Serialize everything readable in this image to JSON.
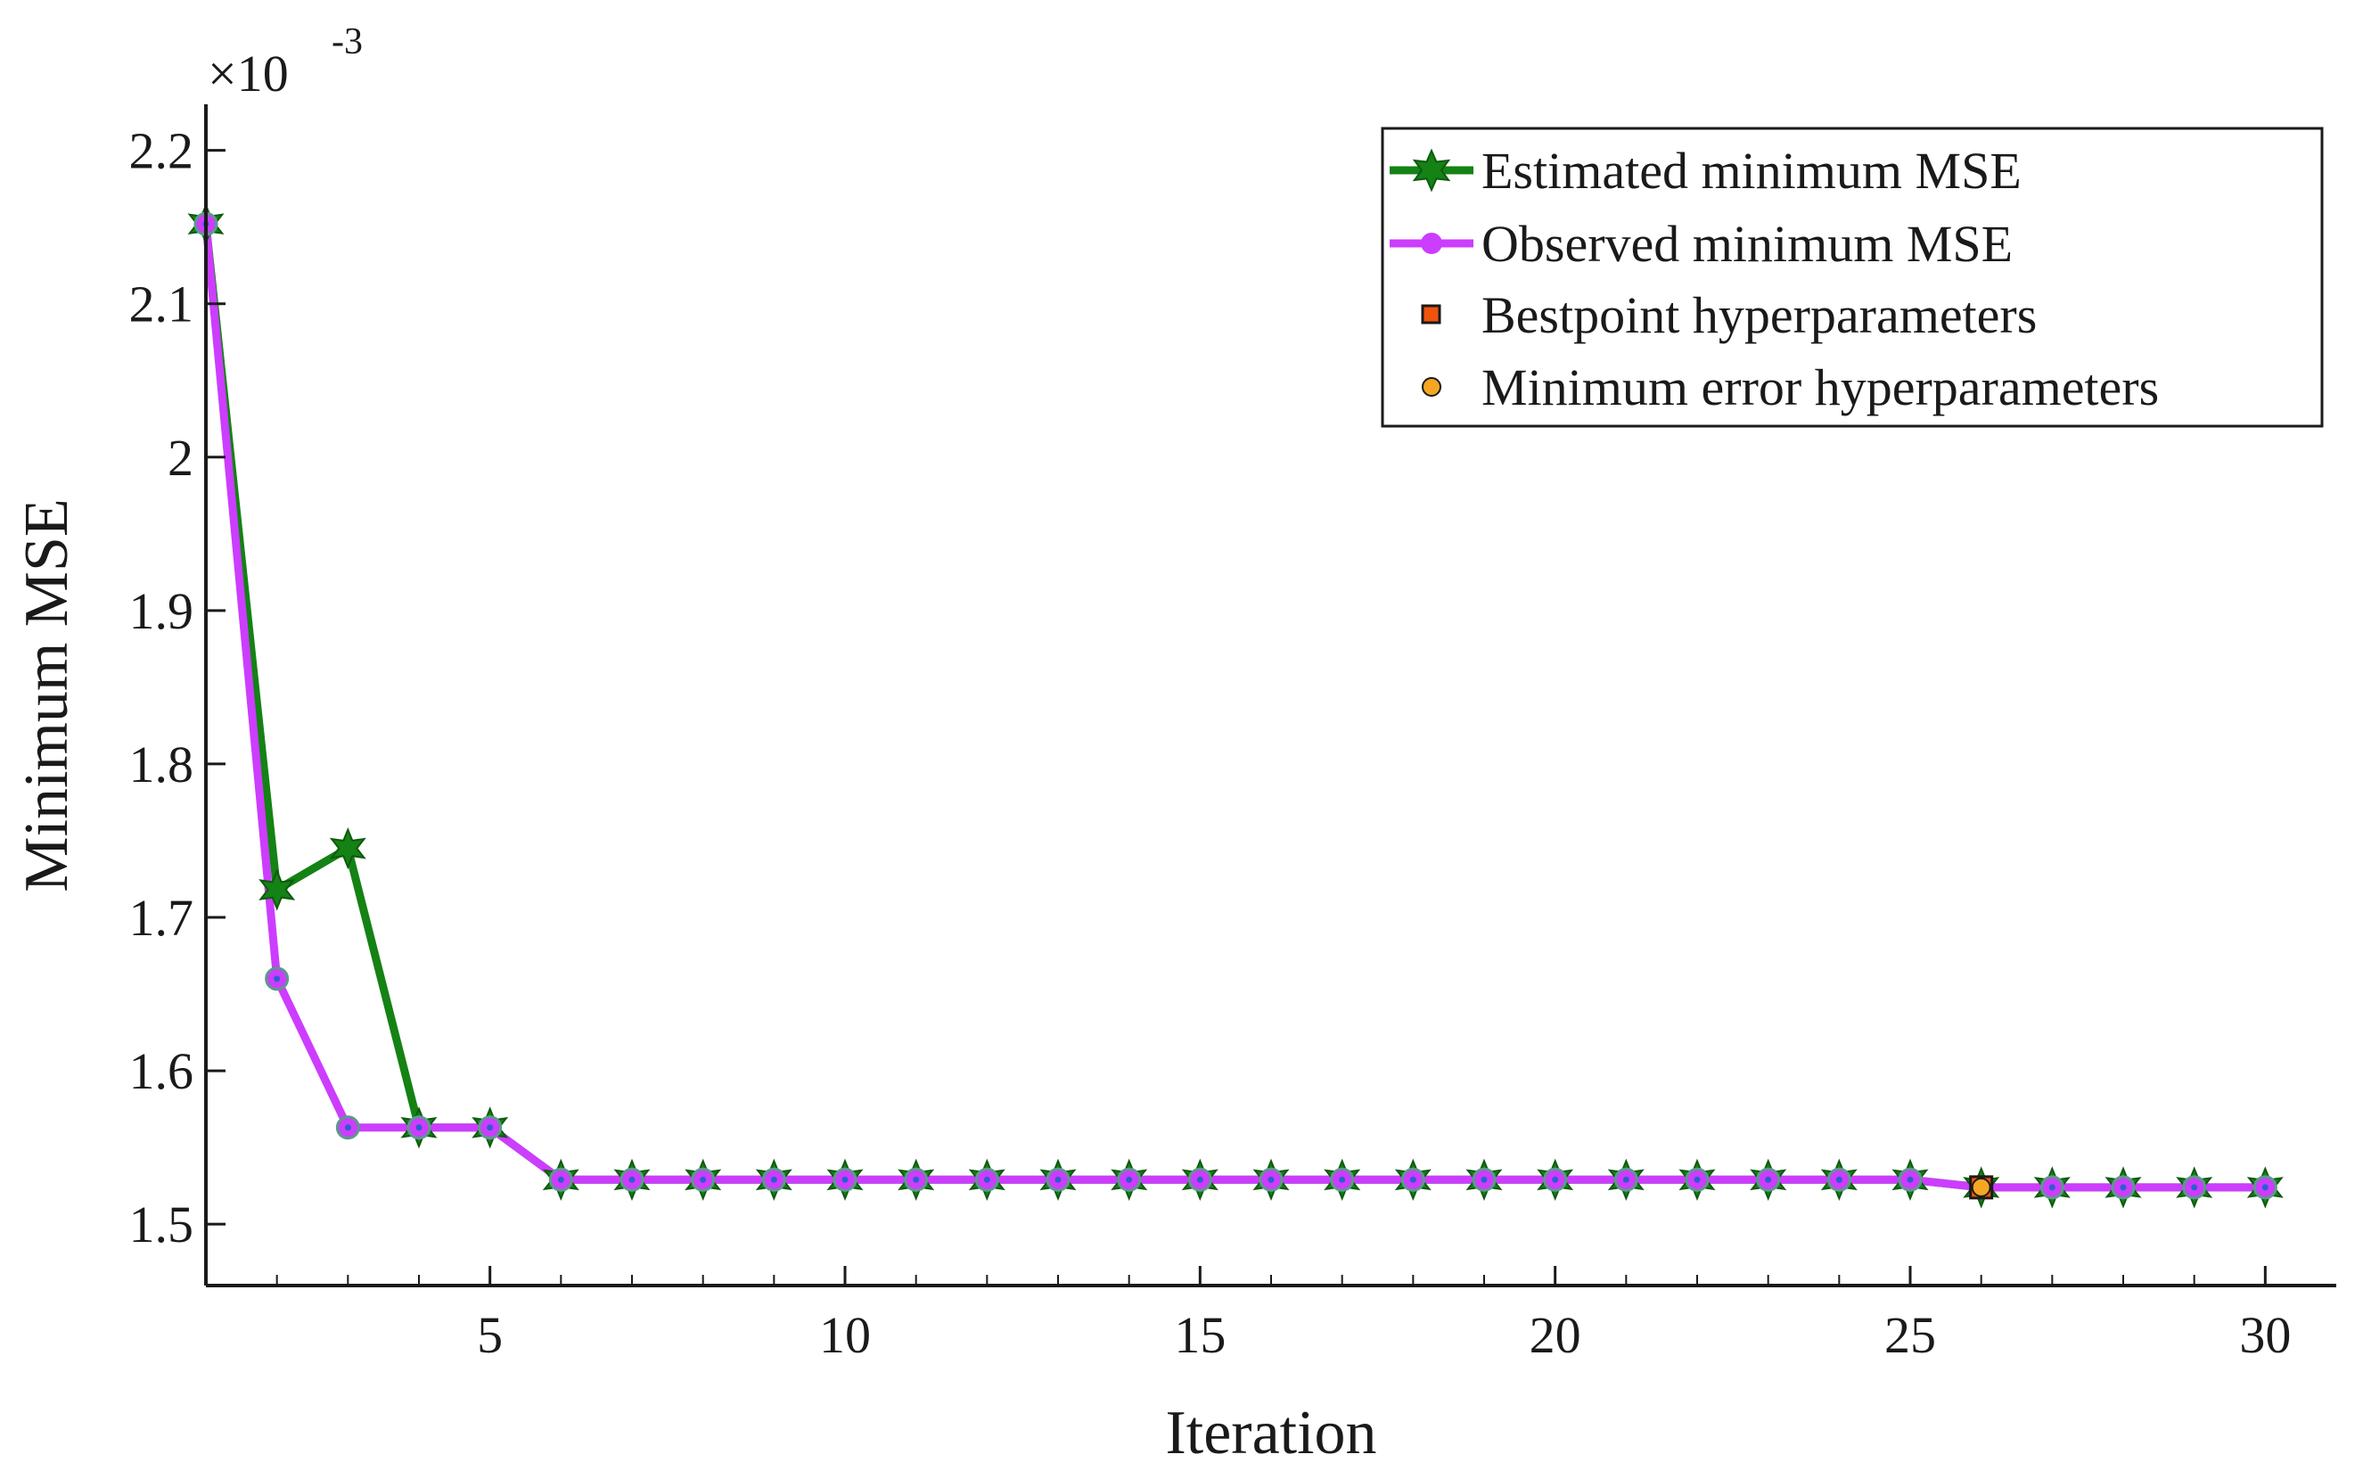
{
  "chart_data": {
    "type": "line",
    "title": "",
    "xlabel": "Iteration",
    "ylabel": "Minimum MSE",
    "exponent_label": {
      "base": "×10",
      "power": "-3"
    },
    "xlim": [
      1,
      31
    ],
    "ylim": [
      1.46,
      2.23
    ],
    "x_ticks": [
      5,
      10,
      15,
      20,
      25,
      30
    ],
    "y_ticks": [
      1.5,
      1.6,
      1.7,
      1.8,
      1.9,
      2.0,
      2.1,
      2.2
    ],
    "y_tick_labels": [
      "1.5",
      "1.6",
      "1.7",
      "1.8",
      "1.9",
      "2",
      "2.1",
      "2.2"
    ],
    "grid": false,
    "legend_position": "top-right",
    "x": [
      1,
      2,
      3,
      4,
      5,
      6,
      7,
      8,
      9,
      10,
      11,
      12,
      13,
      14,
      15,
      16,
      17,
      18,
      19,
      20,
      21,
      22,
      23,
      24,
      25,
      26,
      27,
      28,
      29,
      30
    ],
    "series": [
      {
        "name": "Estimated minimum MSE",
        "color": "#148214",
        "marker": "star",
        "values": [
          2.152,
          1.718,
          1.745,
          1.563,
          1.563,
          1.529,
          1.529,
          1.529,
          1.529,
          1.529,
          1.529,
          1.529,
          1.529,
          1.529,
          1.529,
          1.529,
          1.529,
          1.529,
          1.529,
          1.529,
          1.529,
          1.529,
          1.529,
          1.529,
          1.529,
          1.524,
          1.524,
          1.524,
          1.524,
          1.524
        ]
      },
      {
        "name": "Observed minimum MSE",
        "color": "#cc3dff",
        "marker": "circle",
        "values": [
          2.152,
          1.66,
          1.563,
          1.563,
          1.563,
          1.529,
          1.529,
          1.529,
          1.529,
          1.529,
          1.529,
          1.529,
          1.529,
          1.529,
          1.529,
          1.529,
          1.529,
          1.529,
          1.529,
          1.529,
          1.529,
          1.529,
          1.529,
          1.529,
          1.529,
          1.524,
          1.524,
          1.524,
          1.524,
          1.524
        ]
      }
    ],
    "points": [
      {
        "name": "Bestpoint hyperparameters",
        "marker": "square",
        "color": "#f0540c",
        "x": 26,
        "y": 1.524
      },
      {
        "name": "Minimum error hyperparameters",
        "marker": "circle",
        "color": "#f5a623",
        "x": 26,
        "y": 1.524
      }
    ]
  }
}
